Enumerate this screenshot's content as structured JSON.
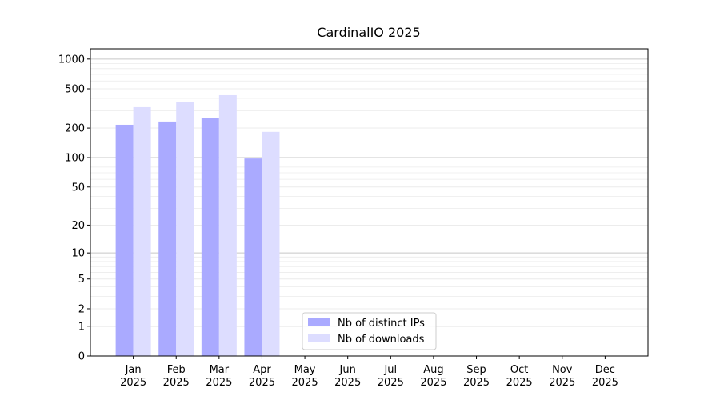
{
  "chart_data": {
    "type": "bar",
    "title": "CardinalIO 2025",
    "categories": [
      "Jan 2025",
      "Feb 2025",
      "Mar 2025",
      "Apr 2025",
      "May 2025",
      "Jun 2025",
      "Jul 2025",
      "Aug 2025",
      "Sep 2025",
      "Oct 2025",
      "Nov 2025",
      "Dec 2025"
    ],
    "series": [
      {
        "name": "Nb of distinct IPs",
        "color": "#aaaaff",
        "values": [
          216,
          233,
          251,
          98,
          null,
          null,
          null,
          null,
          null,
          null,
          null,
          null
        ]
      },
      {
        "name": "Nb of downloads",
        "color": "#ddddff",
        "values": [
          326,
          371,
          431,
          183,
          null,
          null,
          null,
          null,
          null,
          null,
          null,
          null
        ]
      }
    ],
    "yscale": "log1p",
    "ylim": [
      0,
      1270
    ],
    "yticks": [
      0,
      1,
      2,
      5,
      10,
      20,
      50,
      100,
      200,
      500,
      1000
    ],
    "grid": true,
    "legend": "lower center"
  }
}
